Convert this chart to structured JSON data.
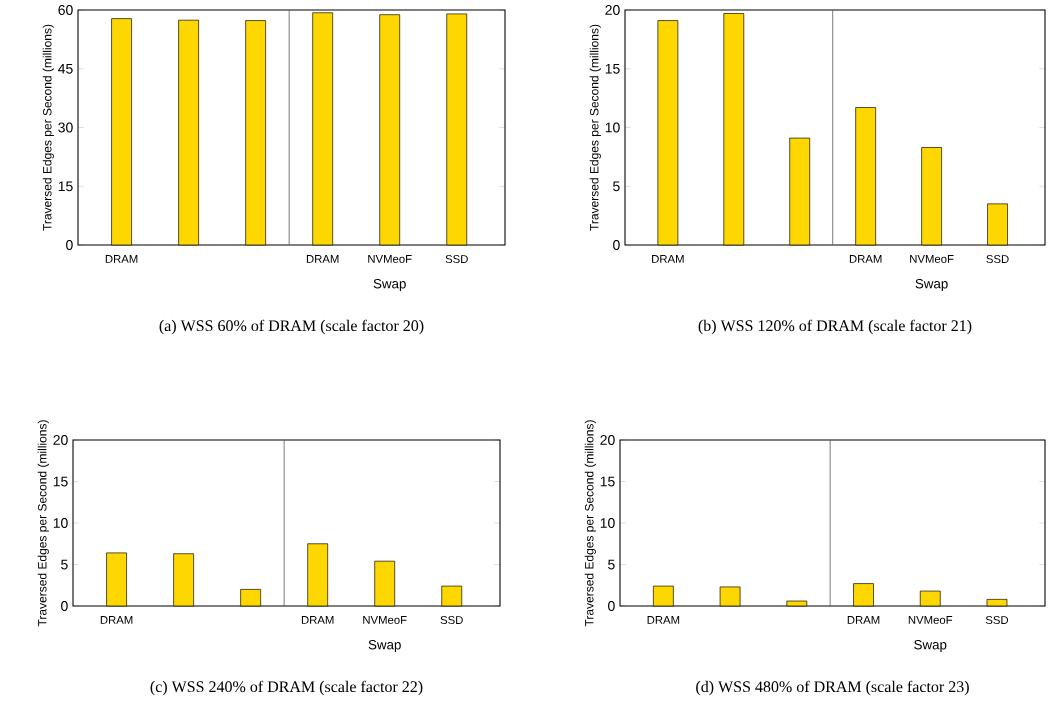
{
  "chart_data": [
    {
      "type": "bar",
      "title": "(a) WSS 60% of DRAM (scale factor 20)",
      "ylabel": "Traversed Edges per Second (millions)",
      "categories": [
        "DRAM",
        null,
        null,
        "DRAM",
        "NVMeoF",
        "SSD"
      ],
      "values": [
        57.8,
        57.4,
        57.3,
        59.3,
        58.8,
        59.0
      ],
      "color": "#ffd700",
      "ylim": [
        0,
        60
      ],
      "yticks": [
        0,
        15,
        30,
        45,
        60
      ],
      "annotations": [
        "Swap"
      ]
    },
    {
      "type": "bar",
      "title": "(b) WSS 120% of DRAM (scale factor 21)",
      "ylabel": "Traversed Edges per Second (millions)",
      "categories": [
        "DRAM",
        null,
        null,
        "DRAM",
        "NVMeoF",
        "SSD"
      ],
      "values": [
        19.1,
        19.7,
        9.1,
        11.7,
        8.3,
        3.5
      ],
      "color": "#ffd700",
      "ylim": [
        0,
        20
      ],
      "yticks": [
        0,
        5,
        10,
        15,
        20
      ],
      "annotations": [
        "Swap"
      ]
    },
    {
      "type": "bar",
      "title": "(c) WSS 240% of DRAM (scale factor 22)",
      "ylabel": "Traversed Edges per Second (millions)",
      "categories": [
        "DRAM",
        null,
        null,
        "DRAM",
        "NVMeoF",
        "SSD"
      ],
      "values": [
        6.4,
        6.3,
        2.0,
        7.5,
        5.4,
        2.4
      ],
      "color": "#ffd700",
      "ylim": [
        0,
        20
      ],
      "yticks": [
        0,
        5,
        10,
        15,
        20
      ],
      "annotations": [
        "Swap"
      ]
    },
    {
      "type": "bar",
      "title": "(d) WSS 480% of DRAM (scale factor 23)",
      "ylabel": "Traversed Edges per Second (millions)",
      "categories": [
        "DRAM",
        null,
        null,
        "DRAM",
        "NVMeoF",
        "SSD"
      ],
      "values": [
        2.4,
        2.3,
        0.6,
        2.7,
        1.8,
        0.8
      ],
      "color": "#ffd700",
      "ylim": [
        0,
        20
      ],
      "yticks": [
        0,
        5,
        10,
        15,
        20
      ],
      "annotations": [
        "Swap"
      ]
    }
  ]
}
